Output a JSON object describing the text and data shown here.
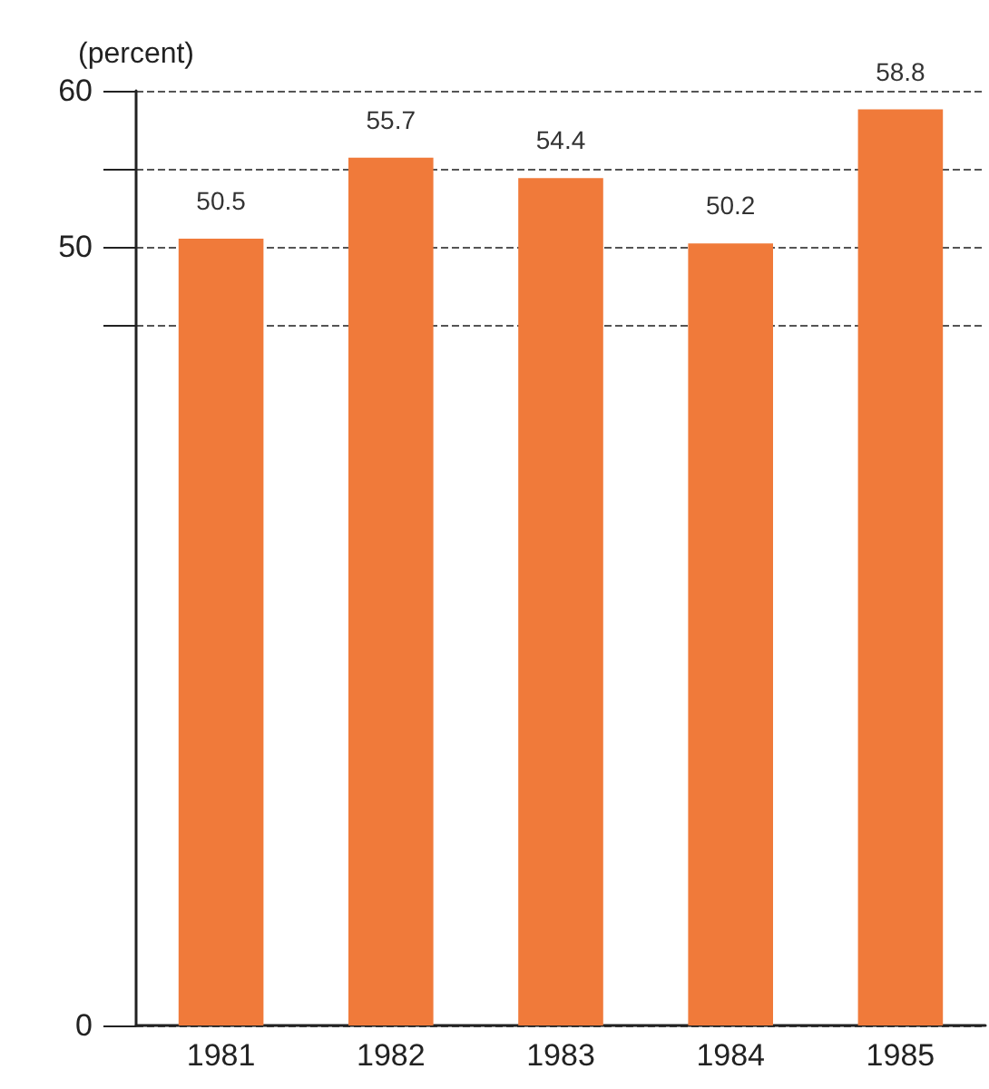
{
  "chart_data": {
    "type": "bar",
    "ylabel": "(percent)",
    "categories": [
      "1981",
      "1982",
      "1983",
      "1984",
      "1985"
    ],
    "values": [
      50.5,
      55.7,
      54.4,
      50.2,
      58.8
    ],
    "color": "#f07a3a",
    "ylim": [
      0,
      60
    ],
    "yticks": [
      0,
      {
        "value": 45,
        "label": null
      },
      50,
      {
        "value": 55,
        "label": null
      },
      60
    ],
    "grid": "y",
    "line_style": "dashed",
    "data_labels": true
  }
}
